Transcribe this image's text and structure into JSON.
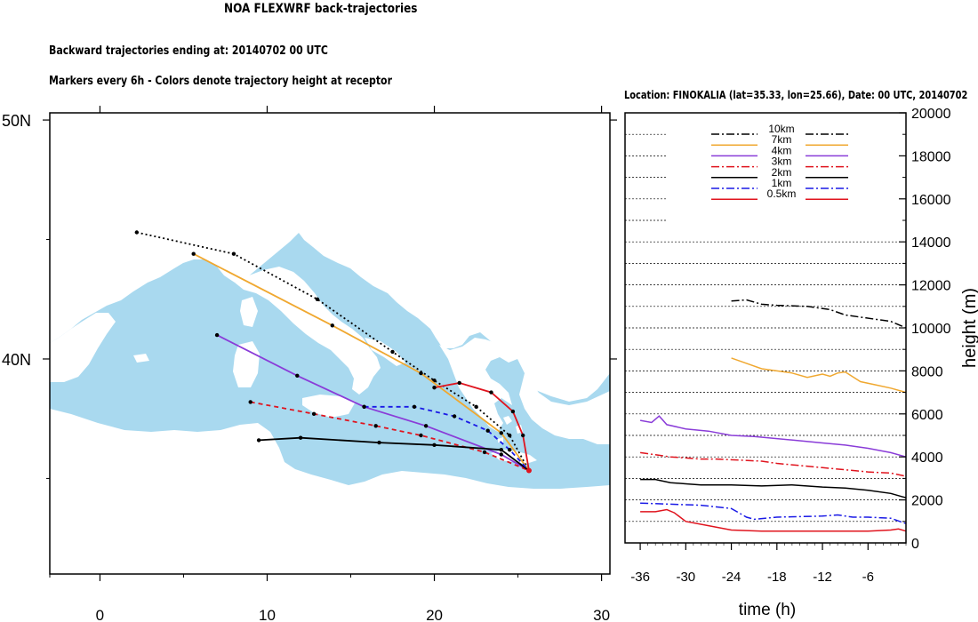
{
  "header": {
    "title": "NOA FLEXWRF back-trajectories",
    "line1": "Backward trajectories ending at: 20140702  00 UTC",
    "line2": "Markers every 6h - Colors denote trajectory height at receptor",
    "location": "Location: FINOKALIA (lat=35.33,  lon=25.66), Date: 00 UTC, 20140702"
  },
  "colors": {
    "sea": "#a9d9ef",
    "land": "#ffffff",
    "10km": "#000000",
    "7km": "#f0a830",
    "4km": "#8a3cd8",
    "3km": "#e0141e",
    "2km": "#000000",
    "1km": "#1a1ae6",
    "0.5km": "#e0141e"
  },
  "chart_data": [
    {
      "type": "scatter",
      "name": "map",
      "xticks": [
        "0",
        "10",
        "20",
        "30"
      ],
      "yticks": [
        "40N",
        "50N"
      ],
      "xlim": [
        -3,
        30.5
      ],
      "ylim": [
        31,
        50.3
      ],
      "receptor": [
        25.66,
        35.33
      ],
      "series": [
        {
          "name": "10km",
          "style": "dotted",
          "lon": [
            2.2,
            8,
            13,
            17.5,
            20,
            22.5,
            24.5,
            25.66
          ],
          "lat": [
            45.3,
            44.4,
            42.5,
            40.3,
            39.1,
            38.0,
            36.8,
            35.33
          ]
        },
        {
          "name": "7km",
          "style": "solid",
          "lon": [
            5.6,
            13.9,
            19.2,
            24,
            25.66
          ],
          "lat": [
            44.4,
            41.4,
            39.4,
            36.9,
            35.33
          ]
        },
        {
          "name": "4km",
          "style": "solid",
          "lon": [
            7.0,
            11.8,
            15.8,
            19.5,
            24,
            25.66
          ],
          "lat": [
            41.0,
            39.3,
            38.0,
            37.2,
            36.0,
            35.33
          ]
        },
        {
          "name": "3km",
          "style": "dashed",
          "lon": [
            9.0,
            12.8,
            16.5,
            19.2,
            23,
            25.66
          ],
          "lat": [
            38.2,
            37.7,
            37.2,
            36.8,
            36.1,
            35.33
          ]
        },
        {
          "name": "2km",
          "style": "solid",
          "lon": [
            9.5,
            12,
            16.7,
            20,
            24,
            25.66
          ],
          "lat": [
            36.6,
            36.7,
            36.5,
            36.4,
            36.2,
            35.33
          ]
        },
        {
          "name": "1km",
          "style": "dashed",
          "lon": [
            15.8,
            18.8,
            21.2,
            23.2,
            24.5,
            25.66
          ],
          "lat": [
            38.0,
            38.0,
            37.6,
            37.0,
            36.2,
            35.33
          ]
        },
        {
          "name": "0.5km",
          "style": "solid",
          "lon": [
            20,
            21.5,
            23.4,
            24.7,
            25.3,
            25.66
          ],
          "lat": [
            38.8,
            39.0,
            38.6,
            37.8,
            36.8,
            35.33
          ]
        }
      ]
    },
    {
      "type": "line",
      "name": "height-profile",
      "xlabel": "time (h)",
      "ylabel": "height (m)",
      "xlim": [
        -38,
        -1
      ],
      "ylim": [
        0,
        20000
      ],
      "xticks": [
        -36,
        -30,
        -24,
        -18,
        -12,
        -6
      ],
      "yticks": [
        0,
        2000,
        4000,
        6000,
        8000,
        10000,
        12000,
        14000,
        16000,
        18000,
        20000
      ],
      "legend": [
        "10km",
        "7km",
        "4km",
        "3km",
        "2km",
        "1km",
        "0.5km"
      ],
      "series": [
        {
          "name": "10km",
          "style": "dashdot",
          "x": [
            -24,
            -22,
            -20,
            -18,
            -14,
            -11,
            -9,
            -7,
            -5,
            -3,
            -1
          ],
          "y": [
            11250,
            11300,
            11100,
            11050,
            11000,
            10850,
            10600,
            10500,
            10400,
            10300,
            10000
          ]
        },
        {
          "name": "7km",
          "style": "solid",
          "x": [
            -24,
            -22,
            -20,
            -18,
            -16,
            -14,
            -12,
            -11,
            -10,
            -9,
            -7,
            -5,
            -3,
            -1
          ],
          "y": [
            8600,
            8350,
            8100,
            8000,
            7900,
            7700,
            7850,
            7750,
            7900,
            7950,
            7500,
            7350,
            7200,
            7000
          ]
        },
        {
          "name": "4km",
          "style": "solid",
          "x": [
            -36,
            -34.5,
            -33.5,
            -32.5,
            -30,
            -27,
            -24,
            -21,
            -18,
            -15,
            -12,
            -9,
            -6,
            -3,
            -1
          ],
          "y": [
            5700,
            5600,
            5900,
            5500,
            5300,
            5200,
            5000,
            4950,
            4850,
            4750,
            4650,
            4550,
            4400,
            4200,
            4000
          ]
        },
        {
          "name": "3km",
          "style": "dashdot",
          "x": [
            -36,
            -34,
            -32,
            -30,
            -28,
            -26,
            -23,
            -20,
            -18,
            -15,
            -12,
            -9,
            -6,
            -3,
            -1
          ],
          "y": [
            4200,
            4100,
            4000,
            3950,
            3900,
            3900,
            3850,
            3800,
            3700,
            3600,
            3500,
            3400,
            3300,
            3250,
            3100
          ]
        },
        {
          "name": "2km",
          "style": "solid",
          "x": [
            -36,
            -34,
            -32,
            -30,
            -28,
            -24,
            -20,
            -16,
            -12,
            -9,
            -6,
            -3,
            -1
          ],
          "y": [
            2950,
            2950,
            2800,
            2750,
            2700,
            2700,
            2650,
            2700,
            2600,
            2550,
            2450,
            2300,
            2100
          ]
        },
        {
          "name": "1km",
          "style": "dashdot",
          "x": [
            -36,
            -32,
            -28,
            -24,
            -22,
            -21,
            -18,
            -12,
            -10,
            -8,
            -6,
            -3,
            -1
          ],
          "y": [
            1850,
            1800,
            1750,
            1600,
            1200,
            1100,
            1200,
            1250,
            1300,
            1200,
            1200,
            1150,
            900
          ]
        },
        {
          "name": "0.5km",
          "style": "solid",
          "x": [
            -36,
            -34,
            -32.5,
            -31.5,
            -30,
            -27,
            -24,
            -20,
            -15,
            -10,
            -6,
            -3,
            -2,
            -1
          ],
          "y": [
            1450,
            1450,
            1550,
            1400,
            1000,
            800,
            600,
            550,
            550,
            550,
            550,
            600,
            650,
            550
          ]
        }
      ]
    }
  ]
}
